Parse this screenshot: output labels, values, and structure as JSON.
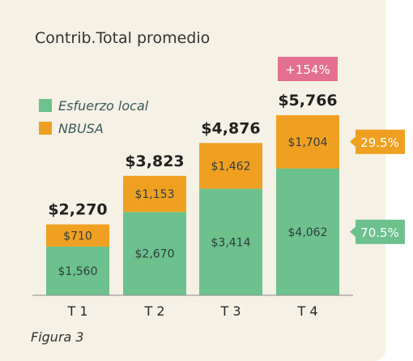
{
  "chart_data": {
    "type": "bar",
    "stacked": true,
    "title": "Contrib.Total promedio",
    "categories": [
      "T 1",
      "T 2",
      "T 3",
      "T 4"
    ],
    "series": [
      {
        "name": "Esfuerzo local",
        "values": [
          1560,
          2670,
          3414,
          4062
        ],
        "labels": [
          "$1,560",
          "$2,670",
          "$3,414",
          "$4,062"
        ],
        "color": "#6cc18d"
      },
      {
        "name": "NBUSA",
        "values": [
          710,
          1153,
          1462,
          1704
        ],
        "labels": [
          "$710",
          "$1,153",
          "$1,462",
          "$1,704"
        ],
        "color": "#f0a021"
      }
    ],
    "totals": [
      "$2,270",
      "$3,823",
      "$4,876",
      "$5,766"
    ],
    "ylim": [
      0,
      5766
    ],
    "grid": false,
    "legend_position": "top-left",
    "annotations": {
      "growth_badge": {
        "text": "+154%",
        "color": "#e4708f",
        "category": "T 4"
      },
      "share_callouts": [
        {
          "text": "29.5%",
          "series": "NBUSA",
          "color": "#f0a021"
        },
        {
          "text": "70.5%",
          "series": "Esfuerzo local",
          "color": "#6cc18d"
        }
      ]
    },
    "caption": "Figura 3"
  }
}
